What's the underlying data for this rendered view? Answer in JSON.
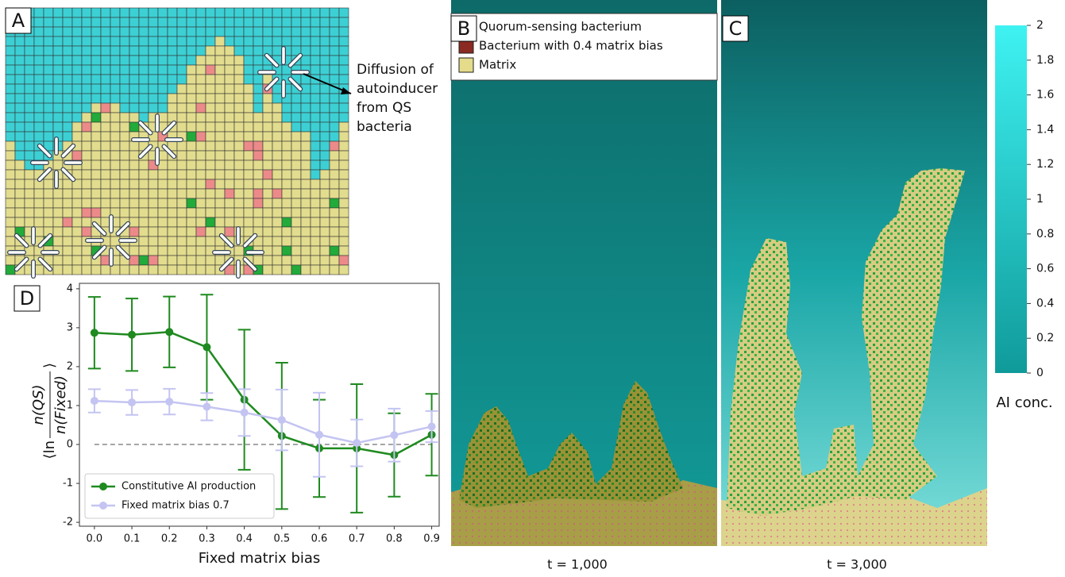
{
  "panels": {
    "a": "A",
    "b": "B",
    "c": "C",
    "d": "D"
  },
  "annotation": [
    "Diffusion of",
    "autoinducer",
    "from QS",
    "bacteria"
  ],
  "legend": [
    "Quorum-sensing bacterium",
    "Bacterium with 0.4 matrix bias",
    "Matrix"
  ],
  "legend_colors": [
    "#22cc55",
    "#8b2a22",
    "#e4dc8a"
  ],
  "captions": [
    "t = 1,000",
    "t = 3,000"
  ],
  "colorbar": {
    "label": "AI conc.",
    "lim": [
      0,
      2
    ],
    "ticks": [
      0,
      0.2,
      0.4,
      0.6,
      0.8,
      1,
      1.2,
      1.4,
      1.6,
      1.8,
      2
    ],
    "colors": [
      "#109a9a",
      "#3ff2f2"
    ]
  },
  "chart_data": {
    "type": "line",
    "x_label": "Fixed matrix bias",
    "y_label": {
      "prefix": "⟨ln",
      "numerator": "n(QS)",
      "denominator": "n(Fixed)",
      "suffix": "⟩"
    },
    "x": [
      0.0,
      0.1,
      0.2,
      0.3,
      0.4,
      0.5,
      0.6,
      0.7,
      0.8,
      0.9
    ],
    "xticks": [
      {
        "value": 0,
        "label": "0.0"
      },
      0.1,
      0.2,
      0.3,
      0.4,
      0.5,
      0.6,
      0.7,
      0.8,
      0.9
    ],
    "xlim": [
      -0.04,
      0.92
    ],
    "ylim": [
      -2.1,
      4.14
    ],
    "yticks": [
      -2,
      -1,
      0,
      1,
      2,
      3,
      4
    ],
    "reference_line": 0,
    "legend_position": "lower left",
    "series": [
      {
        "name": "Constitutive AI production",
        "color": "#1f8a1f",
        "values": [
          2.87,
          2.82,
          2.89,
          2.5,
          1.15,
          0.22,
          -0.1,
          -0.1,
          -0.27,
          0.25
        ],
        "errors": [
          0.92,
          0.93,
          0.91,
          1.35,
          1.8,
          1.88,
          1.25,
          1.65,
          1.07,
          1.05
        ]
      },
      {
        "name": "Fixed matrix bias 0.7",
        "color": "#c4c4f2",
        "values": [
          1.12,
          1.08,
          1.1,
          0.97,
          0.82,
          0.63,
          0.25,
          0.04,
          0.24,
          0.46
        ],
        "errors": [
          0.3,
          0.32,
          0.33,
          0.35,
          0.6,
          0.78,
          1.08,
          0.6,
          0.68,
          0.4
        ]
      }
    ]
  }
}
